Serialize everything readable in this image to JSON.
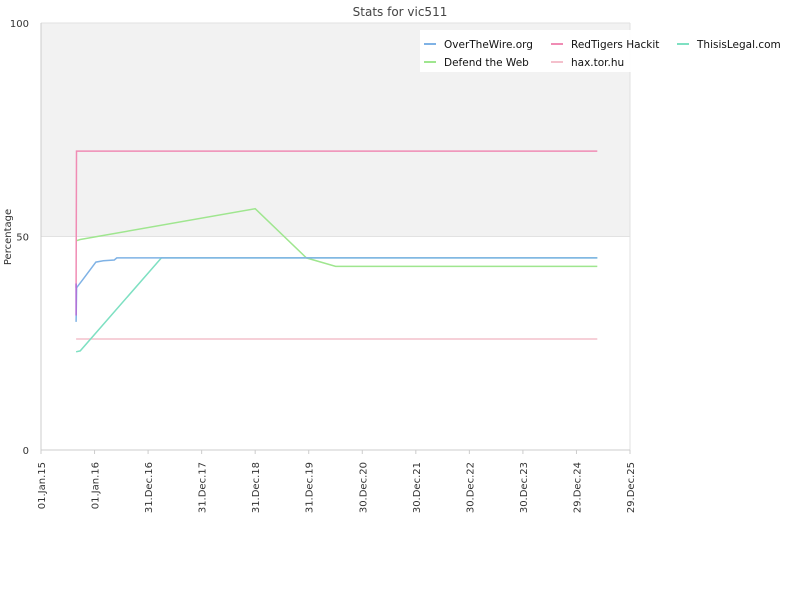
{
  "chart_data": {
    "type": "line",
    "title": "Stats for vic511",
    "xlabel": "",
    "ylabel": "Percentage",
    "ylim": [
      0,
      100
    ],
    "xlim": [
      "2015-01-01",
      "2025-12-29"
    ],
    "y_ticks": [
      {
        "value": 0,
        "label": "0"
      },
      {
        "value": 50,
        "label": "50"
      },
      {
        "value": 100,
        "label": "100"
      }
    ],
    "x_ticks": [
      {
        "date": "2015-01-01",
        "label": "01.Jan.15"
      },
      {
        "date": "2016-01-01",
        "label": "01.Jan.16"
      },
      {
        "date": "2016-12-31",
        "label": "31.Dec.16"
      },
      {
        "date": "2017-12-31",
        "label": "31.Dec.17"
      },
      {
        "date": "2018-12-31",
        "label": "31.Dec.18"
      },
      {
        "date": "2019-12-31",
        "label": "31.Dec.19"
      },
      {
        "date": "2020-12-30",
        "label": "30.Dec.20"
      },
      {
        "date": "2021-12-30",
        "label": "30.Dec.21"
      },
      {
        "date": "2022-12-30",
        "label": "30.Dec.22"
      },
      {
        "date": "2023-12-30",
        "label": "30.Dec.23"
      },
      {
        "date": "2024-12-29",
        "label": "29.Dec.24"
      },
      {
        "date": "2025-12-29",
        "label": "29.Dec.25"
      }
    ],
    "grid": true,
    "shaded_band": [
      50,
      100
    ],
    "legend_position": "top-right",
    "series": [
      {
        "name": "OverTheWire.org",
        "color": "#7fb2e5",
        "points": [
          [
            "2015-08-28",
            30
          ],
          [
            "2015-09-01",
            38
          ],
          [
            "2015-10-15",
            40
          ],
          [
            "2016-01-10",
            44
          ],
          [
            "2016-03-01",
            44.3
          ],
          [
            "2016-05-15",
            44.5
          ],
          [
            "2016-06-01",
            45
          ],
          [
            "2025-05-20",
            45
          ]
        ]
      },
      {
        "name": "RedTigers Hackit",
        "color": "#f08cb4",
        "points": [
          [
            "2015-08-28",
            38
          ],
          [
            "2015-08-31",
            70
          ],
          [
            "2025-05-20",
            70
          ]
        ]
      },
      {
        "name": "ThisisLegal.com",
        "color": "#7ee0c2",
        "points": [
          [
            "2015-08-28",
            23
          ],
          [
            "2015-09-25",
            23.2
          ],
          [
            "2017-04-01",
            45
          ],
          [
            "2025-05-20",
            45
          ]
        ]
      },
      {
        "name": "Defend the Web",
        "color": "#9fe68f",
        "points": [
          [
            "2015-08-28",
            49
          ],
          [
            "2015-09-25",
            49.3
          ],
          [
            "2018-12-31",
            56.5
          ],
          [
            "2019-12-15",
            45
          ],
          [
            "2020-07-01",
            43
          ],
          [
            "2025-05-20",
            43
          ]
        ]
      },
      {
        "name": "hax.tor.hu",
        "color": "#f4c0cc",
        "points": [
          [
            "2015-08-28",
            26
          ],
          [
            "2025-05-20",
            26
          ]
        ]
      }
    ],
    "legend_order": [
      "OverTheWire.org",
      "RedTigers Hackit",
      "ThisisLegal.com",
      "Defend the Web",
      "hax.tor.hu"
    ],
    "extra_marks": {
      "purple_segment": {
        "color": "#b36bd6",
        "points": [
          [
            "2015-08-28",
            31.5
          ],
          [
            "2015-08-28",
            39
          ]
        ]
      }
    }
  }
}
